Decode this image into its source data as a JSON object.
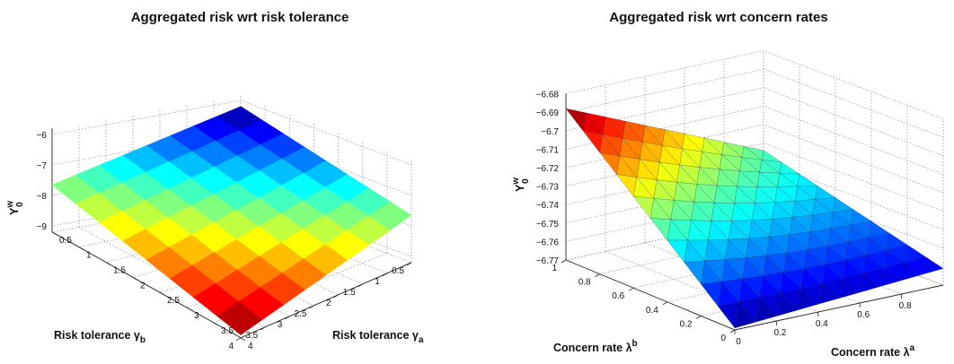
{
  "chart_data": [
    {
      "type": "surface",
      "title": "Aggregated risk wrt risk tolerance",
      "xlabel": {
        "main": "Risk tolerance γ",
        "sub": "a"
      },
      "ylabel": {
        "main": "Risk tolerance γ",
        "sub": "b"
      },
      "zlabel": {
        "main": "Y",
        "sup": "w",
        "sub": "0"
      },
      "x": [
        0.5,
        0.9375,
        1.375,
        1.8125,
        2.25,
        2.6875,
        3.125,
        3.5625,
        4.0
      ],
      "y": [
        0.5,
        0.9375,
        1.375,
        1.8125,
        2.25,
        2.6875,
        3.125,
        3.5625,
        4.0
      ],
      "z_formula_note": "",
      "z_min_corner": -9.1,
      "z_max_corner": -6.2,
      "xlim": [
        0.5,
        4
      ],
      "ylim": [
        0.5,
        4
      ],
      "zlim": [
        -9,
        -6
      ],
      "x_ticks": [
        "0.5",
        "1",
        "1.5",
        "2",
        "2.5",
        "3",
        "3.5",
        "4"
      ],
      "y_ticks": [
        "0.5",
        "1",
        "1.5",
        "2",
        "2.5",
        "3",
        "3.5",
        "4"
      ],
      "z_ticks": [
        "−9",
        "−8",
        "−7",
        "−6"
      ],
      "colormap": "jet",
      "grid": true
    },
    {
      "type": "surface",
      "title": "Aggregated risk wrt concern rates",
      "xlabel": {
        "main": "Concern rate λ",
        "sup": "a"
      },
      "ylabel": {
        "main": "Concern rate λ",
        "sup": "b"
      },
      "zlabel": {
        "main": "Y",
        "sup": "w",
        "sub": "0"
      },
      "x": [
        0,
        0.1,
        0.2,
        0.3,
        0.4,
        0.5,
        0.6,
        0.7,
        0.8,
        0.9,
        1.0
      ],
      "y": [
        0,
        0.1,
        0.2,
        0.3,
        0.4,
        0.5,
        0.6,
        0.7,
        0.8,
        0.9,
        1.0
      ],
      "z_at_corners": {
        "x0_y0": -6.769,
        "x1_y0": -6.761,
        "x0_y1": -6.688,
        "x1_y1": -6.734
      },
      "xlim": [
        0,
        1
      ],
      "ylim": [
        0,
        1
      ],
      "zlim": [
        -6.77,
        -6.68
      ],
      "x_ticks": [
        "0",
        "0.2",
        "0.4",
        "0.6",
        "0.8"
      ],
      "y_ticks": [
        "0",
        "0.2",
        "0.4",
        "0.6",
        "0.8",
        "1"
      ],
      "z_ticks": [
        "−6.77",
        "−6.76",
        "−6.75",
        "−6.74",
        "−6.73",
        "−6.72",
        "−6.71",
        "−6.7",
        "−6.69",
        "−6.68"
      ],
      "colormap": "jet",
      "grid": true
    }
  ]
}
